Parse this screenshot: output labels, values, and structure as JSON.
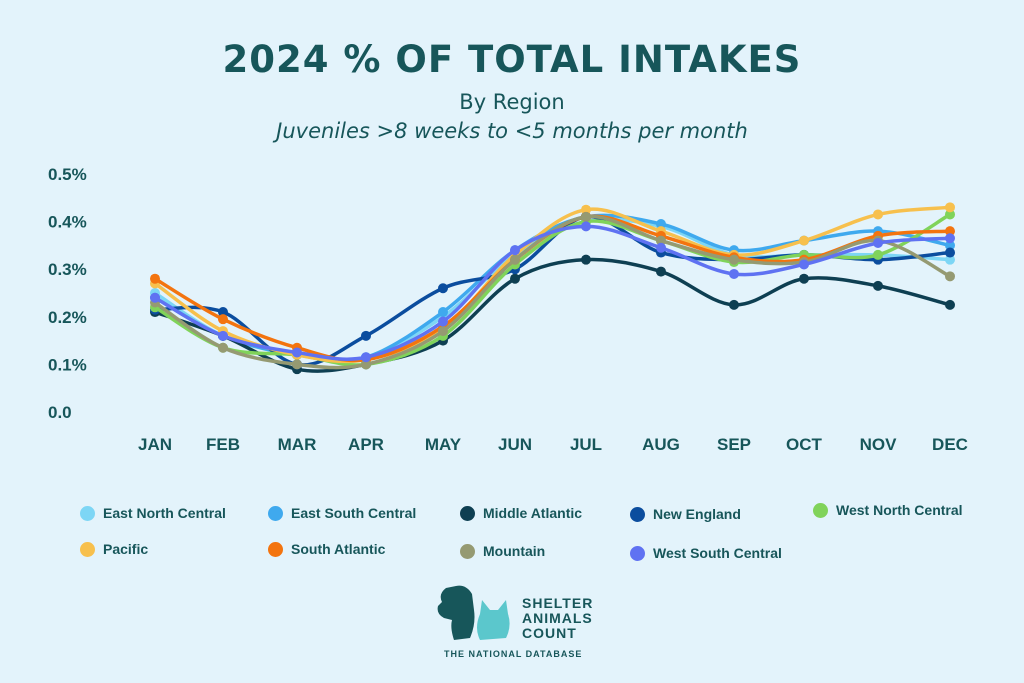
{
  "header": {
    "title": "2024 % OF TOTAL INTAKES",
    "subtitle": "By Region",
    "description": "Juveniles >8 weeks to <5 months per month"
  },
  "logo": {
    "line1": "SHELTER",
    "line2": "ANIMALS",
    "line3": "COUNT",
    "tagline": "THE NATIONAL DATABASE"
  },
  "colors": {
    "text": "#17565a",
    "background": "#e3f3fb"
  },
  "chart_data": {
    "type": "line",
    "categories": [
      "JAN",
      "FEB",
      "MAR",
      "APR",
      "MAY",
      "JUN",
      "JUL",
      "AUG",
      "SEP",
      "OCT",
      "NOV",
      "DEC"
    ],
    "yticks": [
      "0.0",
      "0.1%",
      "0.2%",
      "0.3%",
      "0.4%",
      "0.5%"
    ],
    "ylim": [
      0,
      0.5
    ],
    "legend_position": "bottom",
    "series": [
      {
        "name": "East North Central",
        "color": "#7dd6f5",
        "values": [
          0.25,
          0.16,
          0.12,
          0.115,
          0.2,
          0.33,
          0.4,
          0.39,
          0.33,
          0.33,
          0.33,
          0.32
        ]
      },
      {
        "name": "East South Central",
        "color": "#3fa9ee",
        "values": [
          0.24,
          0.16,
          0.12,
          0.115,
          0.21,
          0.34,
          0.41,
          0.395,
          0.34,
          0.36,
          0.38,
          0.35
        ]
      },
      {
        "name": "Middle Atlantic",
        "color": "#0e3f52",
        "values": [
          0.21,
          0.16,
          0.09,
          0.1,
          0.15,
          0.28,
          0.32,
          0.295,
          0.225,
          0.28,
          0.265,
          0.225
        ]
      },
      {
        "name": "New England",
        "color": "#0b4d9e",
        "values": [
          0.215,
          0.21,
          0.1,
          0.16,
          0.26,
          0.3,
          0.41,
          0.335,
          0.32,
          0.33,
          0.32,
          0.335
        ]
      },
      {
        "name": "West North Central",
        "color": "#80d35a",
        "values": [
          0.22,
          0.135,
          0.12,
          0.1,
          0.16,
          0.31,
          0.4,
          0.36,
          0.315,
          0.33,
          0.33,
          0.415
        ]
      },
      {
        "name": "Pacific",
        "color": "#f7c04d",
        "values": [
          0.27,
          0.17,
          0.12,
          0.11,
          0.175,
          0.33,
          0.425,
          0.38,
          0.33,
          0.36,
          0.415,
          0.43
        ]
      },
      {
        "name": "South Atlantic",
        "color": "#f3740f",
        "values": [
          0.28,
          0.195,
          0.135,
          0.11,
          0.18,
          0.32,
          0.41,
          0.37,
          0.325,
          0.32,
          0.37,
          0.38
        ]
      },
      {
        "name": "Mountain",
        "color": "#959a72",
        "values": [
          0.23,
          0.135,
          0.1,
          0.1,
          0.17,
          0.32,
          0.41,
          0.36,
          0.32,
          0.315,
          0.36,
          0.285
        ]
      },
      {
        "name": "West South Central",
        "color": "#5f72f2",
        "values": [
          0.24,
          0.16,
          0.125,
          0.115,
          0.19,
          0.34,
          0.39,
          0.345,
          0.29,
          0.31,
          0.355,
          0.365
        ]
      }
    ]
  }
}
